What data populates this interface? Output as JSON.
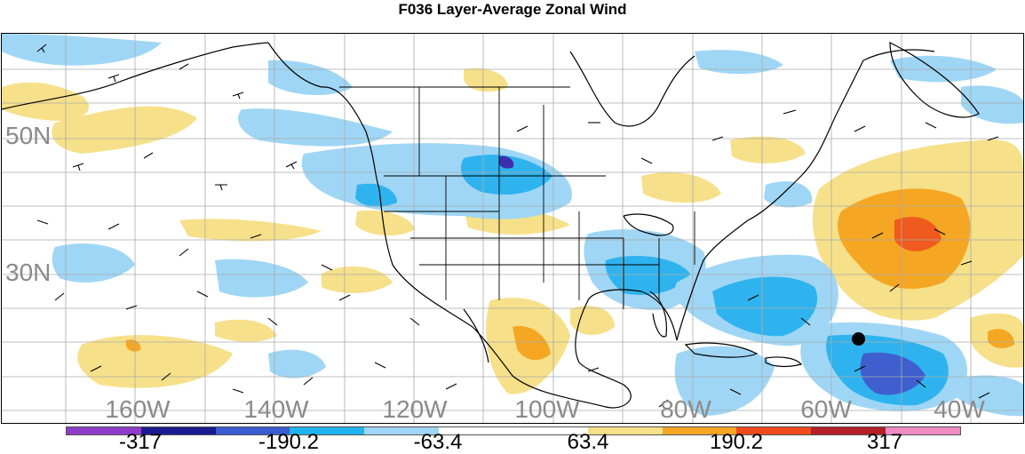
{
  "title": "F036 Layer-Average Zonal Wind",
  "map": {
    "region": "North America and adjacent Pacific / Atlantic",
    "lat_labels": [
      "50N",
      "30N"
    ],
    "lon_labels": [
      "160W",
      "140W",
      "120W",
      "100W",
      "80W",
      "60W",
      "40W"
    ],
    "colors": {
      "light_blue": "#9fd6f5",
      "mid_blue": "#2fb3ee",
      "strong_blue": "#3f5fcf",
      "deep_blue": "#3b2fb0",
      "light_yellow": "#f6e08a",
      "orange": "#f5a623",
      "red_orange": "#ef5a1e",
      "coast": "#000000",
      "grid": "#aaaaaa"
    },
    "marker": "storm-center-dot"
  },
  "colorbar": {
    "colors": [
      "#8e3cc9",
      "#1b1b8f",
      "#3a5bd1",
      "#1fb4ee",
      "#9fd6f5",
      "#ffffff",
      "#ffffff",
      "#f6e08a",
      "#f5a623",
      "#ef4a1e",
      "#b3202a",
      "#f08bc4"
    ],
    "labels": [
      "-317",
      "-190.2",
      "-63.4",
      "63.4",
      "190.2",
      "317"
    ]
  }
}
